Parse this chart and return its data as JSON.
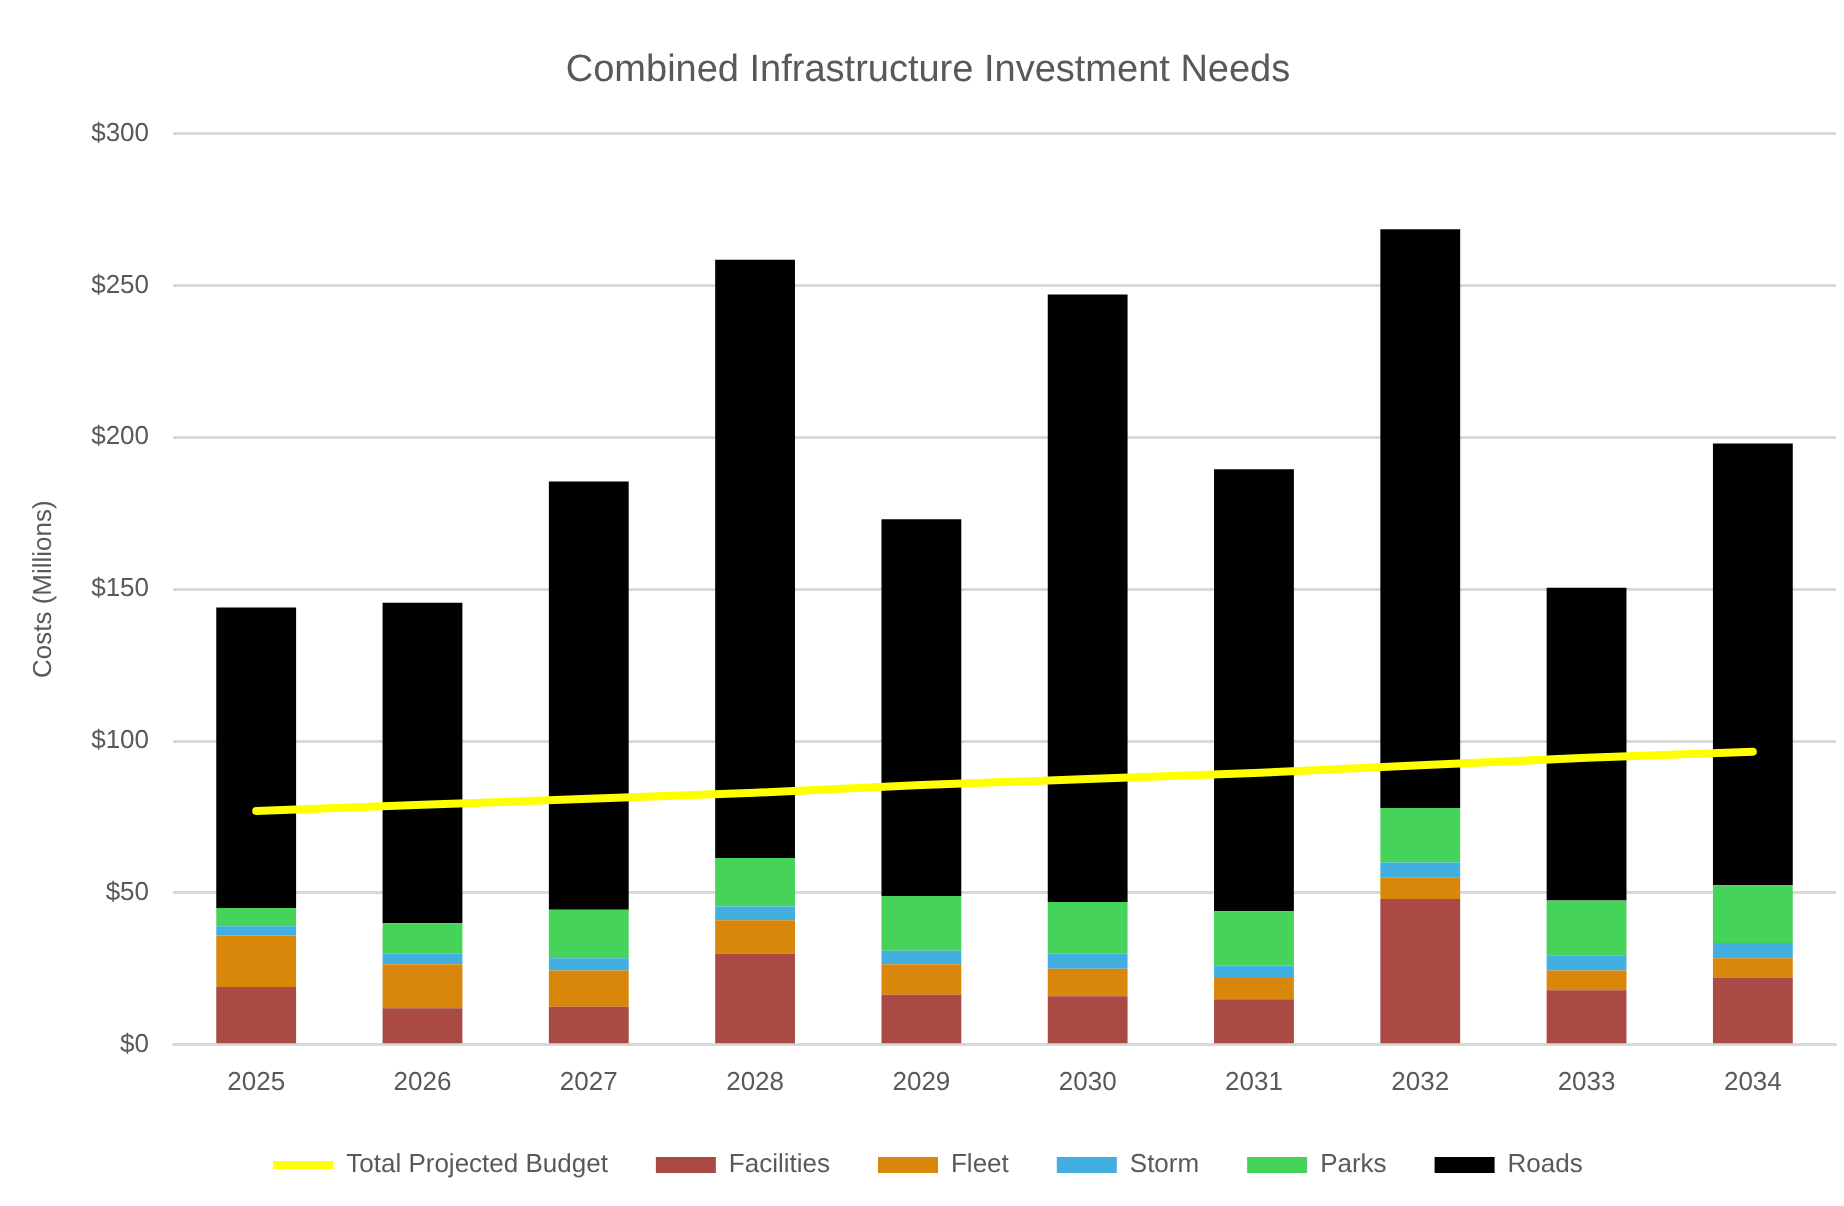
{
  "chart_data": {
    "type": "bar",
    "title": "Combined Infrastructure Investment Needs",
    "ylabel": "Costs (Millions)",
    "stacked": true,
    "categories": [
      "2025",
      "2026",
      "2027",
      "2028",
      "2029",
      "2030",
      "2031",
      "2032",
      "2033",
      "2034"
    ],
    "series": [
      {
        "name": "Facilities",
        "color": "#a94a45",
        "values": [
          19,
          12,
          12.5,
          30,
          16.5,
          16,
          15,
          48,
          18,
          22
        ]
      },
      {
        "name": "Fleet",
        "color": "#d9870a",
        "values": [
          17,
          14.5,
          12,
          11,
          10,
          9,
          7,
          7,
          6.5,
          6.5
        ]
      },
      {
        "name": "Storm",
        "color": "#43aee0",
        "values": [
          3,
          3.5,
          4,
          4.5,
          4.5,
          5,
          4,
          5,
          5,
          5
        ]
      },
      {
        "name": "Parks",
        "color": "#45d35a",
        "values": [
          6,
          10,
          16,
          16,
          18,
          17,
          18,
          18,
          18,
          19
        ]
      },
      {
        "name": "Roads",
        "color": "#000000",
        "values": [
          99,
          105.5,
          141,
          197,
          124,
          200,
          145.5,
          190.5,
          103,
          145.5
        ]
      },
      {
        "name": "Total Projected Budget",
        "type": "line",
        "color": "#ffff00",
        "values": [
          77,
          79,
          81,
          83,
          85.5,
          87.5,
          89.5,
          92,
          94.5,
          96.5
        ]
      }
    ],
    "ylim": [
      0,
      300
    ],
    "yticks": [
      {
        "value": 0,
        "label": "$0"
      },
      {
        "value": 50,
        "label": "$50"
      },
      {
        "value": 100,
        "label": "$100"
      },
      {
        "value": 150,
        "label": "$150"
      },
      {
        "value": 200,
        "label": "$200"
      },
      {
        "value": 250,
        "label": "$250"
      },
      {
        "value": 300,
        "label": "$300"
      }
    ],
    "grid": "y",
    "legend": "bottom",
    "marker": "none"
  }
}
